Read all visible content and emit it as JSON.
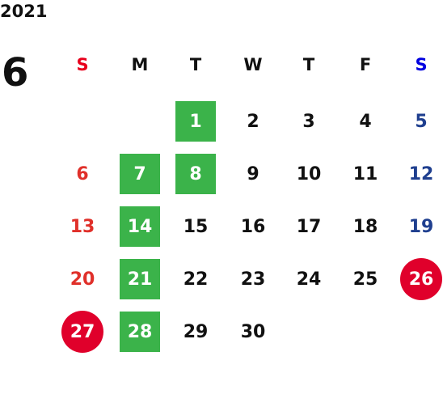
{
  "year": "2021",
  "month": "6",
  "weekdays": [
    "S",
    "M",
    "T",
    "W",
    "T",
    "F",
    "S"
  ],
  "weeks": [
    [
      null,
      null,
      1,
      2,
      3,
      4,
      5
    ],
    [
      6,
      7,
      8,
      9,
      10,
      11,
      12
    ],
    [
      13,
      14,
      15,
      16,
      17,
      18,
      19
    ],
    [
      20,
      21,
      22,
      23,
      24,
      25,
      26
    ],
    [
      27,
      28,
      29,
      30,
      null,
      null,
      null
    ]
  ],
  "boxed_days": [
    1,
    7,
    8,
    14,
    21,
    28
  ],
  "box_color": "#3bb34a",
  "circled_days": [
    26,
    27
  ],
  "circle_color": "#e0002b",
  "sunday_color": "#e0302a",
  "saturday_color": "#1f3f8f",
  "sunday_header_color": "#e8001c",
  "saturday_header_color": "#0000e0"
}
